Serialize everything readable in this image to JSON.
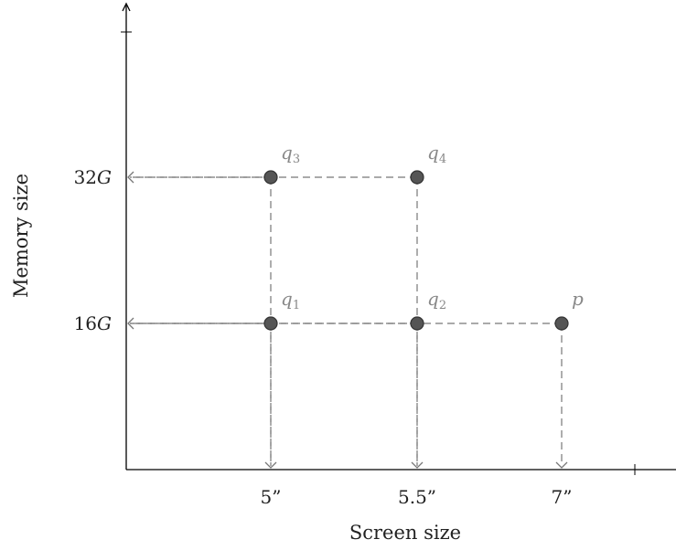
{
  "chart_data": {
    "type": "scatter",
    "title": "",
    "xlabel": "Screen size",
    "ylabel": "Memory size",
    "x_ticks": [
      {
        "value": 5,
        "label": "5”"
      },
      {
        "value": 5.5,
        "label": "5.5”"
      },
      {
        "value": 7,
        "label": "7”"
      }
    ],
    "y_ticks": [
      {
        "value": 16,
        "label": "16",
        "unit": "G"
      },
      {
        "value": 32,
        "label": "32",
        "unit": "G"
      }
    ],
    "points": [
      {
        "name": "q",
        "sub": "1",
        "x": 5,
        "y": 16
      },
      {
        "name": "q",
        "sub": "2",
        "x": 5.5,
        "y": 16
      },
      {
        "name": "q",
        "sub": "3",
        "x": 5,
        "y": 32
      },
      {
        "name": "q",
        "sub": "4",
        "x": 5.5,
        "y": 32
      },
      {
        "name": "p",
        "sub": "",
        "x": 7,
        "y": 16
      }
    ],
    "grid": false,
    "colors": {
      "point_fill": "#555555",
      "point_stroke": "#333333",
      "dash": "#777777",
      "label": "#888888",
      "axis": "#000000"
    }
  }
}
